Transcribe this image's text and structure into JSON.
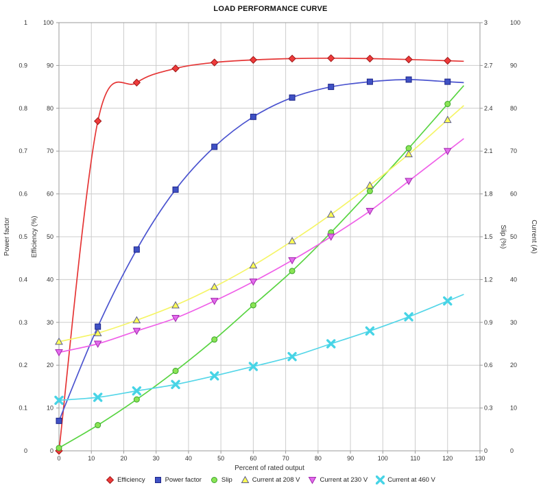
{
  "chart_data": {
    "type": "line",
    "title": "LOAD PERFORMANCE CURVE",
    "x_axis": {
      "label": "Percent of rated output",
      "min": 0,
      "max": 130,
      "step": 10
    },
    "y_axes": [
      {
        "id": "power_factor",
        "label": "Power factor",
        "min": 0,
        "max": 1,
        "step": 0.1,
        "side": "left"
      },
      {
        "id": "efficiency",
        "label": "Efficiency (%)",
        "min": 0,
        "max": 100,
        "step": 10,
        "side": "left"
      },
      {
        "id": "slip",
        "label": "Slip (%)",
        "min": 0,
        "max": 3,
        "step": 0.3,
        "side": "right"
      },
      {
        "id": "current",
        "label": "Current (A)",
        "min": 0,
        "max": 100,
        "step": 10,
        "side": "right"
      }
    ],
    "x": [
      0,
      12,
      24,
      36,
      48,
      60,
      72,
      84,
      96,
      108,
      120
    ],
    "series": [
      {
        "name": "Efficiency",
        "axis": "efficiency",
        "marker": "diamond",
        "line_color": "#e53434",
        "fill": "#ee3b3b",
        "stroke": "#a01818",
        "values": [
          0,
          77,
          86,
          89.3,
          90.7,
          91.3,
          91.6,
          91.7,
          91.6,
          91.4,
          91.1
        ]
      },
      {
        "name": "Power factor",
        "axis": "power_factor",
        "marker": "square",
        "line_color": "#4a53cf",
        "fill": "#3f51c4",
        "stroke": "#1c2488",
        "values": [
          0.07,
          0.29,
          0.47,
          0.61,
          0.71,
          0.78,
          0.825,
          0.85,
          0.862,
          0.867,
          0.862
        ]
      },
      {
        "name": "Slip",
        "axis": "slip",
        "marker": "circle",
        "line_color": "#58d441",
        "fill": "#8ae455",
        "stroke": "#3aa32a",
        "values": [
          0.02,
          0.18,
          0.36,
          0.56,
          0.78,
          1.02,
          1.26,
          1.53,
          1.82,
          2.12,
          2.43
        ]
      },
      {
        "name": "Current at 208 V",
        "axis": "current",
        "marker": "triangle-up",
        "line_color": "#f5f566",
        "fill": "#ffff55",
        "stroke": "#5a5a8f",
        "values": [
          25.5,
          27.5,
          30.5,
          34,
          38.3,
          43.3,
          49,
          55.2,
          62,
          69.3,
          77.3
        ]
      },
      {
        "name": "Current at 230 V",
        "axis": "current",
        "marker": "triangle-down",
        "line_color": "#ef5fe8",
        "fill": "#e36bec",
        "stroke": "#a127ad",
        "values": [
          23,
          25,
          28,
          31,
          35,
          39.5,
          44.5,
          50,
          56,
          63,
          70
        ]
      },
      {
        "name": "Current at 460 V",
        "axis": "current",
        "marker": "x",
        "line_color": "#54d6e8",
        "fill": "#47d4e6",
        "stroke": "#19b4cc",
        "values": [
          11.8,
          12.5,
          14,
          15.5,
          17.5,
          19.7,
          22,
          25,
          28,
          31.3,
          35
        ]
      }
    ],
    "curve_extension_x": 125,
    "grid": true,
    "legend_position": "bottom"
  },
  "colors": {
    "background": "#ffffff",
    "grid": "#cccccc",
    "border": "#9a9a9a",
    "tick_text": "#333333"
  }
}
